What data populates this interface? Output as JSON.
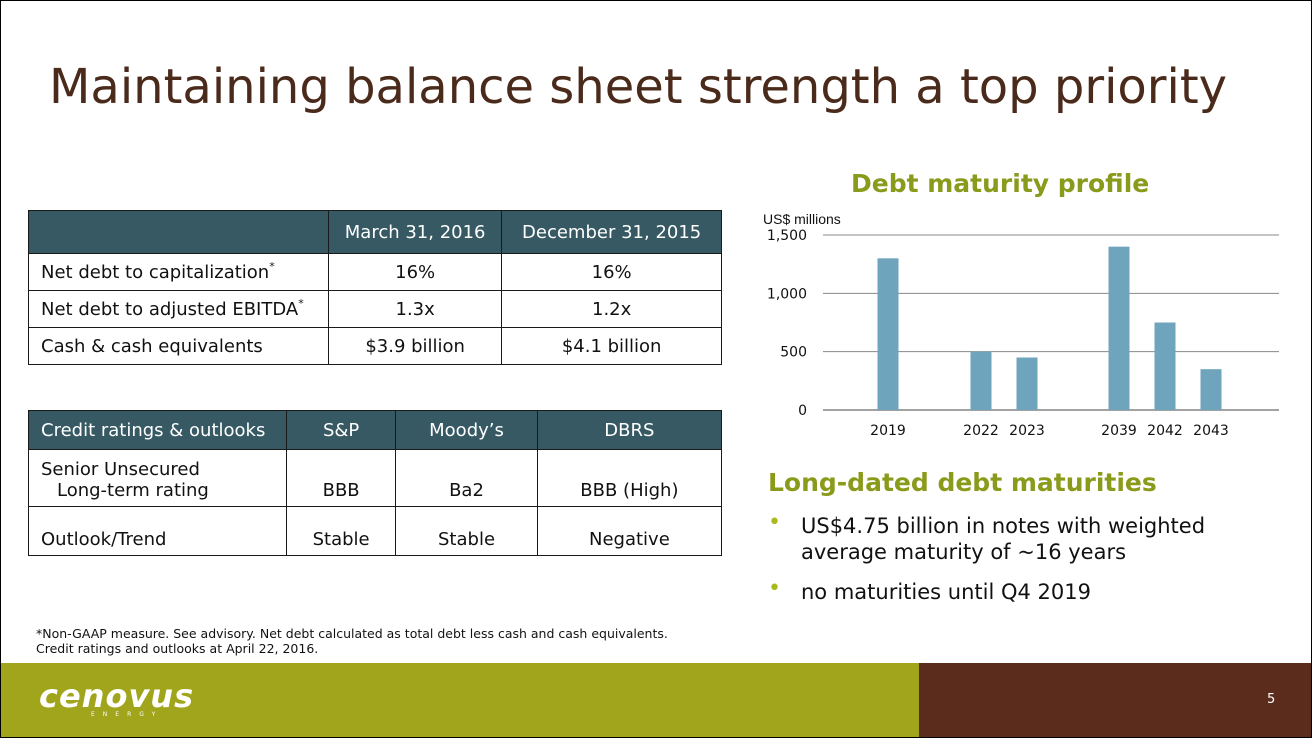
{
  "title": "Maintaining balance sheet strength a top priority",
  "table1": {
    "columns": [
      "",
      "March 31, 2016",
      "December 31, 2015"
    ],
    "rows": [
      {
        "label": "Net debt to capitalization",
        "mark": "*",
        "values": [
          "16%",
          "16%"
        ]
      },
      {
        "label": "Net debt to adjusted EBITDA",
        "mark": "*",
        "values": [
          "1.3x",
          "1.2x"
        ]
      },
      {
        "label": "Cash & cash equivalents",
        "mark": "",
        "values": [
          "$3.9 billion",
          "$4.1 billion"
        ]
      }
    ]
  },
  "table2": {
    "columns": [
      "Credit ratings & outlooks",
      "S&P",
      "Moody’s",
      "DBRS"
    ],
    "rows": [
      {
        "label_line1": "Senior Unsecured",
        "label_line2": "Long-term rating",
        "values": [
          "BBB",
          "Ba2",
          "BBB (High)"
        ]
      },
      {
        "label": "Outlook/Trend",
        "values": [
          "Stable",
          "Stable",
          "Negative"
        ]
      }
    ]
  },
  "chart_title": "Debt maturity profile",
  "chart_data": {
    "type": "bar",
    "ylabel": "US$ millions",
    "categories": [
      "2019",
      "2022",
      "2023",
      "2039",
      "2042",
      "2043"
    ],
    "values": [
      1300,
      500,
      450,
      1400,
      750,
      350
    ],
    "ylim": [
      0,
      1500
    ],
    "yticks": [
      "0",
      "500",
      "1,000",
      "1,500"
    ],
    "grid": true,
    "bar_color": "#6fa4bd"
  },
  "sub_title": "Long-dated debt maturities",
  "bullets": [
    "US$4.75 billion in notes with weighted average maturity of ~16 years",
    "no maturities until Q4 2019"
  ],
  "footnote": {
    "line1": "*Non-GAAP measure. See advisory. Net debt calculated as total debt less cash and cash equivalents.",
    "line2": "Credit ratings and outlooks at April 22, 2016."
  },
  "logo": {
    "word": "cenovus",
    "sub": "ENERGY"
  },
  "page_number": "5",
  "colors": {
    "accent": "#8a9a1b",
    "header": "#365963",
    "footer_left": "#a0a51b",
    "footer_right": "#5b2c1c"
  }
}
